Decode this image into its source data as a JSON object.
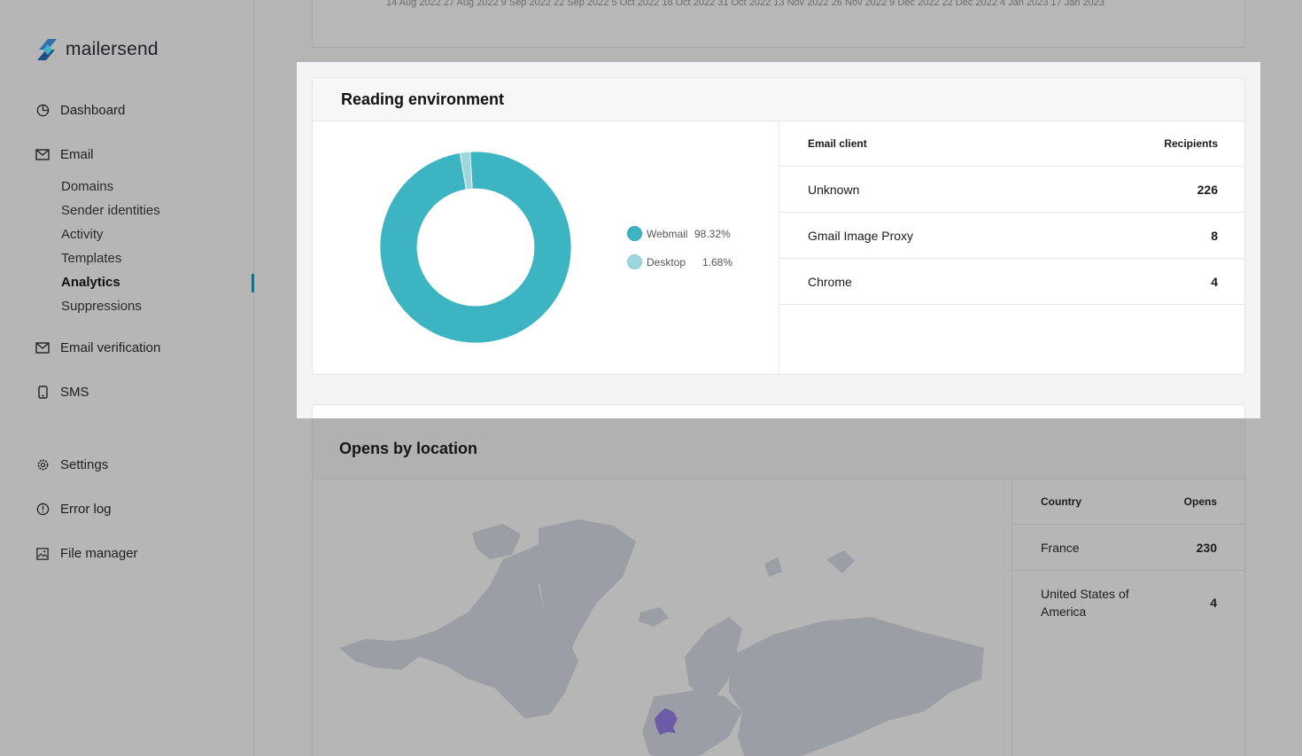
{
  "brand": {
    "name": "mailersend"
  },
  "sidebar": {
    "items": [
      {
        "label": "Dashboard",
        "icon": "pie-chart-icon"
      },
      {
        "label": "Email",
        "icon": "envelope-icon"
      },
      {
        "label": "Email verification",
        "icon": "envelope-check-icon"
      },
      {
        "label": "SMS",
        "icon": "phone-icon"
      },
      {
        "label": "Settings",
        "icon": "gear-icon"
      },
      {
        "label": "Error log",
        "icon": "alert-circle-icon"
      },
      {
        "label": "File manager",
        "icon": "image-icon"
      }
    ],
    "email_sub": [
      "Domains",
      "Sender identities",
      "Activity",
      "Templates",
      "Analytics",
      "Suppressions"
    ],
    "active_sub": "Analytics"
  },
  "top_chart": {
    "x_ticks": "14 Aug 2022  27 Aug 2022  9 Sep 2022  22 Sep 2022  5 Oct 2022  18 Oct 2022  31 Oct 2022  13 Nov 2022  26 Nov 2022  9 Dec 2022  22 Dec 2022  4 Jan 2023  17 Jan 2023"
  },
  "reading_environment": {
    "title": "Reading environment",
    "table_headers": {
      "client": "Email client",
      "recipients": "Recipients"
    },
    "rows": [
      {
        "client": "Unknown",
        "recipients": "226"
      },
      {
        "client": "Gmail Image Proxy",
        "recipients": "8"
      },
      {
        "client": "Chrome",
        "recipients": "4"
      }
    ]
  },
  "chart_data": {
    "type": "pie",
    "donut": true,
    "labels": [
      "Webmail",
      "Desktop"
    ],
    "values": [
      98.32,
      1.68
    ],
    "value_labels": [
      "98.32%",
      "1.68%"
    ],
    "colors": [
      "#3cb4c2",
      "#9fd6dd"
    ],
    "legend_position": "right"
  },
  "opens_by_location": {
    "title": "Opens by location",
    "table_headers": {
      "country": "Country",
      "opens": "Opens"
    },
    "rows": [
      {
        "country": "France",
        "opens": "230"
      },
      {
        "country": "United States of America",
        "opens": "4"
      }
    ],
    "highlight_color": "#6b5ca5"
  }
}
